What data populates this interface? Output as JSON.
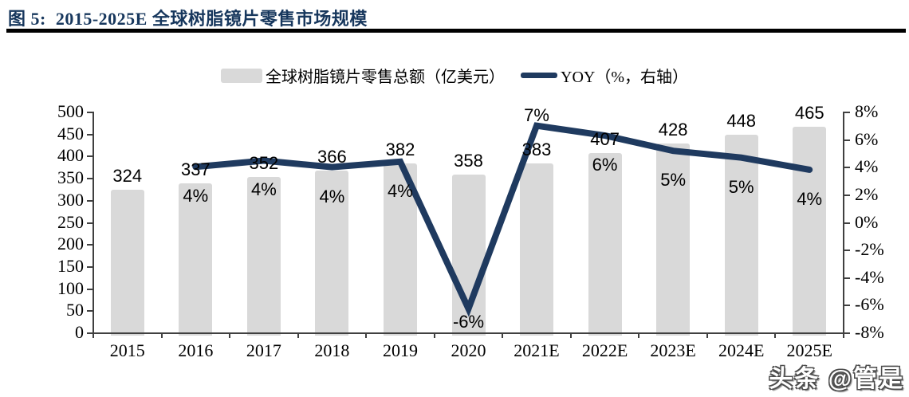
{
  "figure": {
    "title": "图 5:  2015-2025E 全球树脂镜片零售市场规模",
    "watermark": "头条 @管是"
  },
  "legend": {
    "bar_label": "全球树脂镜片零售总额（亿美元）",
    "line_label": "YOY（%，右轴）"
  },
  "colors": {
    "bar": "#d9d9d9",
    "line": "#1f3a5f",
    "title": "#17375d",
    "axis": "#404040"
  },
  "chart_data": {
    "type": "bar",
    "subtype": "bar+line combo, dual axis",
    "title": "图 5: 2015-2025E 全球树脂镜片零售市场规模",
    "categories": [
      "2015",
      "2016",
      "2017",
      "2018",
      "2019",
      "2020",
      "2021E",
      "2022E",
      "2023E",
      "2024E",
      "2025E"
    ],
    "series": [
      {
        "name": "全球树脂镜片零售总额（亿美元）",
        "type": "bar",
        "axis": "left",
        "color": "#d9d9d9",
        "values": [
          324,
          337,
          352,
          366,
          382,
          358,
          383,
          407,
          428,
          448,
          465
        ],
        "value_labels": [
          "324",
          "337",
          "352",
          "366",
          "382",
          "358",
          "383",
          "407",
          "428",
          "448",
          "465"
        ]
      },
      {
        "name": "YOY（%，右轴）",
        "type": "line",
        "axis": "right",
        "color": "#1f3a5f",
        "values": [
          null,
          4.0,
          4.45,
          3.98,
          4.37,
          -6.28,
          6.98,
          6.27,
          5.16,
          4.67,
          3.79
        ],
        "point_labels": [
          "",
          "4%",
          "4%",
          "4%",
          "4%",
          "-6%",
          "7%",
          "6%",
          "5%",
          "5%",
          "4%"
        ]
      }
    ],
    "left_axis": {
      "min": 0,
      "max": 500,
      "step": 50,
      "tick_labels": [
        "500",
        "450",
        "400",
        "350",
        "300",
        "250",
        "200",
        "150",
        "100",
        "50",
        "0"
      ]
    },
    "right_axis": {
      "min": -8,
      "max": 8,
      "step": 2,
      "tick_labels": [
        "8%",
        "6%",
        "4%",
        "2%",
        "0%",
        "-2%",
        "-4%",
        "-6%",
        "-8%"
      ]
    },
    "grid": false,
    "legend_position": "top-center"
  }
}
